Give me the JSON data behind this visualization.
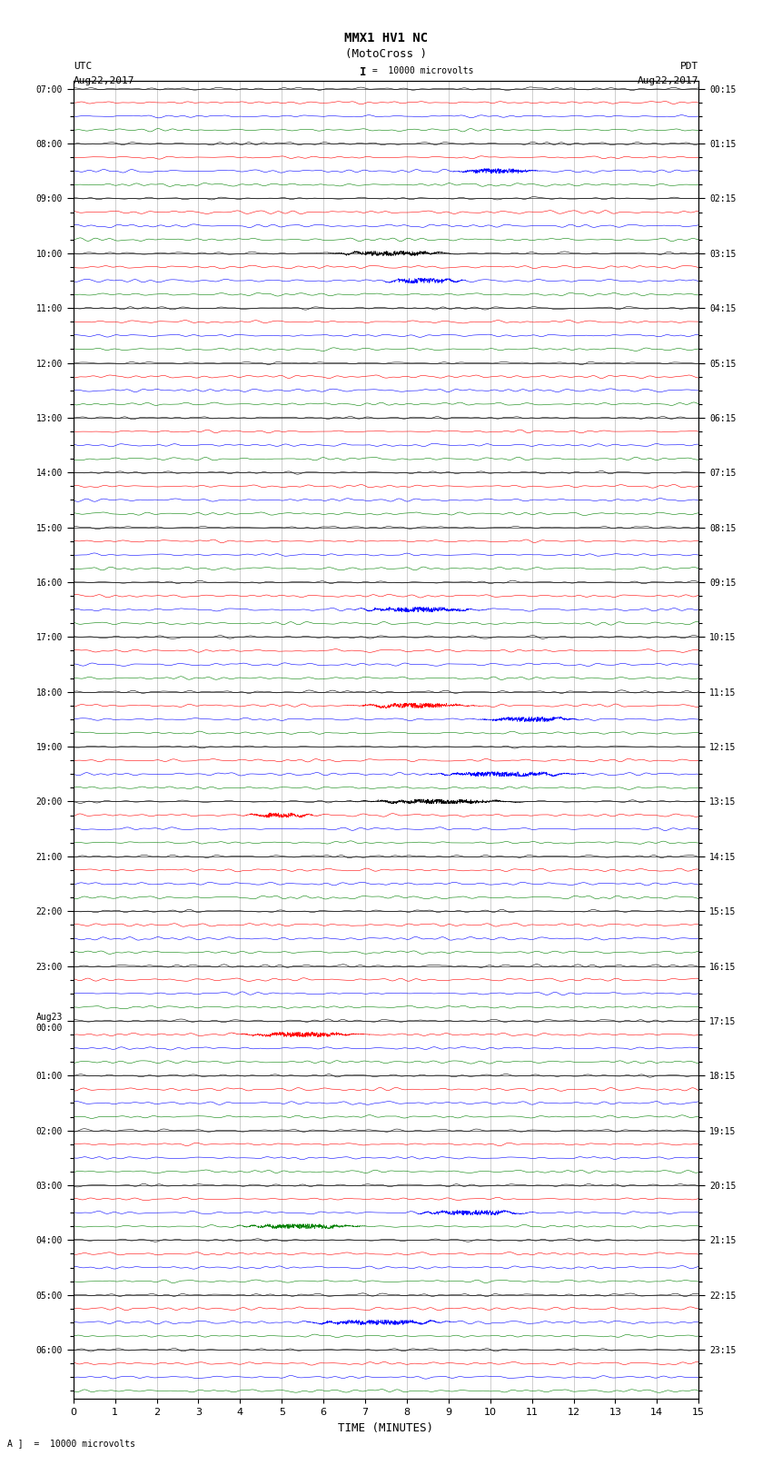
{
  "title_line1": "MMX1 HV1 NC",
  "title_line2": "(MotoCross )",
  "left_header": "UTC",
  "left_date_start": "Aug22,2017",
  "right_header": "PDT",
  "right_date_start": "Aug22,2017",
  "xlabel": "TIME (MINUTES)",
  "scale_label": "10000 microvolts",
  "xmin": 0,
  "xmax": 15,
  "utc_hour_labels": [
    "07:00",
    "08:00",
    "09:00",
    "10:00",
    "11:00",
    "12:00",
    "13:00",
    "14:00",
    "15:00",
    "16:00",
    "17:00",
    "18:00",
    "19:00",
    "20:00",
    "21:00",
    "22:00",
    "23:00",
    "Aug23\n00:00",
    "01:00",
    "02:00",
    "03:00",
    "04:00",
    "05:00",
    "06:00"
  ],
  "pdt_hour_labels": [
    "00:15",
    "01:15",
    "02:15",
    "03:15",
    "04:15",
    "05:15",
    "06:15",
    "07:15",
    "08:15",
    "09:15",
    "10:15",
    "11:15",
    "12:15",
    "13:15",
    "14:15",
    "15:15",
    "16:15",
    "17:15",
    "18:15",
    "19:15",
    "20:15",
    "21:15",
    "22:15",
    "23:15"
  ],
  "trace_colors": [
    "black",
    "red",
    "blue",
    "green"
  ],
  "background_color": "white",
  "n_hours": 24,
  "traces_per_hour": 4,
  "grid_color": "#aaaaaa",
  "font_family": "monospace",
  "trace_amplitude": 0.28,
  "trace_linewidth": 0.4,
  "n_points": 3000
}
